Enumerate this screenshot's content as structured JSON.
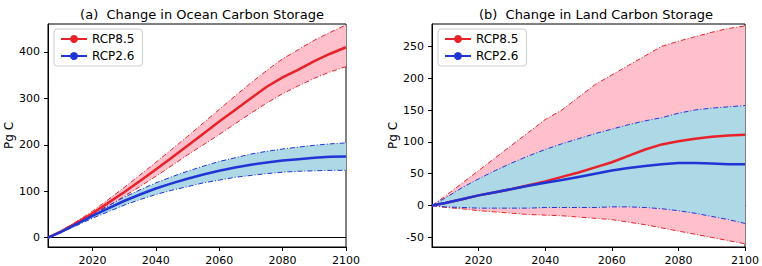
{
  "chart_data": [
    {
      "type": "line",
      "title": "(a)  Change in Ocean Carbon Storage",
      "y_label": "Pg C",
      "x": [
        2006,
        2010,
        2015,
        2020,
        2025,
        2030,
        2035,
        2040,
        2045,
        2050,
        2055,
        2060,
        2065,
        2070,
        2075,
        2080,
        2085,
        2090,
        2095,
        2100
      ],
      "xlim": [
        2006,
        2100
      ],
      "xticks": [
        2020,
        2040,
        2060,
        2080,
        2100
      ],
      "ylim": [
        -20,
        460
      ],
      "yticks": [
        0,
        100,
        200,
        300,
        400
      ],
      "grid": false,
      "legend": "upper left",
      "series": [
        {
          "name": "RCP8.5",
          "color": "#e8222a",
          "values": [
            0,
            13,
            32,
            52,
            75,
            98,
            122,
            147,
            172,
            198,
            224,
            250,
            275,
            300,
            325,
            345,
            362,
            380,
            396,
            410
          ],
          "lower": [
            0,
            12,
            29,
            47,
            68,
            89,
            110,
            132,
            155,
            178,
            200,
            222,
            245,
            268,
            290,
            310,
            327,
            343,
            357,
            368
          ],
          "upper": [
            0,
            14,
            35,
            57,
            82,
            108,
            135,
            162,
            190,
            218,
            247,
            276,
            305,
            333,
            360,
            385,
            405,
            425,
            442,
            458
          ]
        },
        {
          "name": "RCP2.6",
          "color": "#1f35d6",
          "values": [
            0,
            12,
            29,
            47,
            63,
            79,
            93,
            106,
            117,
            127,
            136,
            144,
            151,
            157,
            162,
            166,
            169,
            172,
            174,
            175
          ],
          "lower": [
            0,
            11,
            26,
            42,
            56,
            70,
            82,
            93,
            102,
            110,
            118,
            124,
            130,
            134,
            138,
            141,
            143,
            144,
            145,
            145
          ],
          "upper": [
            0,
            13,
            32,
            51,
            69,
            87,
            103,
            118,
            131,
            143,
            154,
            164,
            172,
            180,
            186,
            191,
            195,
            199,
            202,
            204
          ]
        }
      ]
    },
    {
      "type": "line",
      "title": "(b)  Change in Land Carbon Storage",
      "y_label": "Pg C",
      "x": [
        2006,
        2010,
        2015,
        2020,
        2025,
        2030,
        2035,
        2040,
        2045,
        2050,
        2055,
        2060,
        2065,
        2070,
        2075,
        2080,
        2085,
        2090,
        2095,
        2100
      ],
      "xlim": [
        2006,
        2100
      ],
      "xticks": [
        2020,
        2040,
        2060,
        2080,
        2100
      ],
      "ylim": [
        -65,
        285
      ],
      "yticks": [
        -50,
        0,
        50,
        100,
        150,
        200,
        250
      ],
      "grid": false,
      "legend": "upper left",
      "series": [
        {
          "name": "RCP8.5",
          "color": "#e8222a",
          "values": [
            0,
            4,
            10,
            16,
            21,
            26,
            32,
            38,
            45,
            52,
            60,
            68,
            78,
            88,
            96,
            101,
            105,
            108,
            110,
            111
          ],
          "lower": [
            0,
            -3,
            -5,
            -8,
            -10,
            -12,
            -14,
            -15,
            -16,
            -18,
            -20,
            -22,
            -26,
            -30,
            -35,
            -40,
            -45,
            -50,
            -55,
            -60
          ],
          "upper": [
            0,
            15,
            35,
            55,
            75,
            95,
            115,
            135,
            150,
            170,
            190,
            205,
            220,
            235,
            250,
            258,
            265,
            272,
            278,
            282
          ]
        },
        {
          "name": "RCP2.6",
          "color": "#1f35d6",
          "values": [
            0,
            4,
            10,
            16,
            21,
            26,
            31,
            36,
            40,
            45,
            50,
            55,
            59,
            62,
            65,
            67,
            67,
            66,
            65,
            65
          ],
          "lower": [
            0,
            -2,
            -3,
            -4,
            -4,
            -4,
            -4,
            -3,
            -3,
            -3,
            -3,
            -2,
            -2,
            -3,
            -5,
            -8,
            -12,
            -17,
            -22,
            -28
          ],
          "upper": [
            0,
            12,
            28,
            42,
            55,
            67,
            78,
            88,
            97,
            105,
            113,
            120,
            127,
            133,
            138,
            145,
            150,
            153,
            155,
            157
          ]
        }
      ]
    }
  ]
}
